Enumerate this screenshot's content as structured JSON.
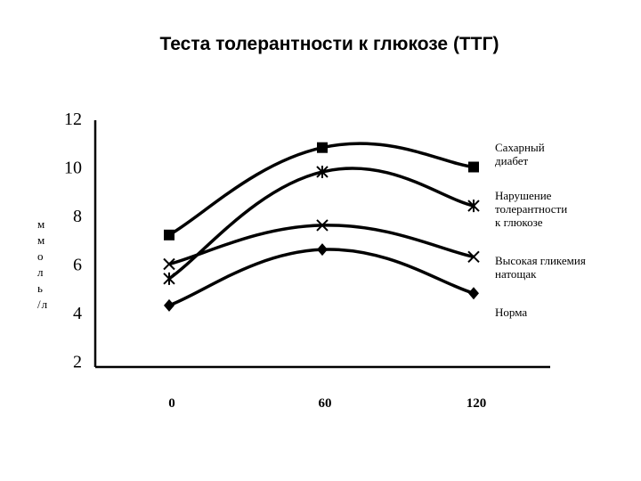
{
  "title": "Теста толерантности к глюкозе (ТТГ)",
  "chart_data": {
    "type": "line",
    "x": [
      0,
      60,
      120
    ],
    "x_tick_labels": [
      "0",
      "60",
      "120"
    ],
    "y_ticks": [
      "12",
      "10",
      "8",
      "6",
      "4",
      "2"
    ],
    "ylim": [
      2,
      12
    ],
    "ylabel_lines": [
      "м",
      "м",
      "о",
      "л",
      "ь",
      "/л"
    ],
    "xlabel": "",
    "grid": false,
    "legend_placement": "right",
    "series": [
      {
        "name": "Сахарный диабет",
        "label_lines": [
          "Сахарный",
          "диабет"
        ],
        "marker": "square",
        "values": [
          7.2,
          10.8,
          10.0
        ]
      },
      {
        "name": "Нарушение толерантности к глюкозе",
        "label_lines": [
          "Нарушение",
          "толерантности",
          "к глюкозе"
        ],
        "marker": "asterisk",
        "values": [
          5.4,
          9.8,
          8.4
        ]
      },
      {
        "name": "Высокая гликемия натощак",
        "label_lines": [
          "Высокая гликемия",
          "натощак"
        ],
        "marker": "x",
        "values": [
          6.0,
          7.6,
          6.3
        ]
      },
      {
        "name": "Норма",
        "label_lines": [
          "Норма"
        ],
        "marker": "diamond",
        "values": [
          4.3,
          6.6,
          4.8
        ]
      }
    ]
  }
}
